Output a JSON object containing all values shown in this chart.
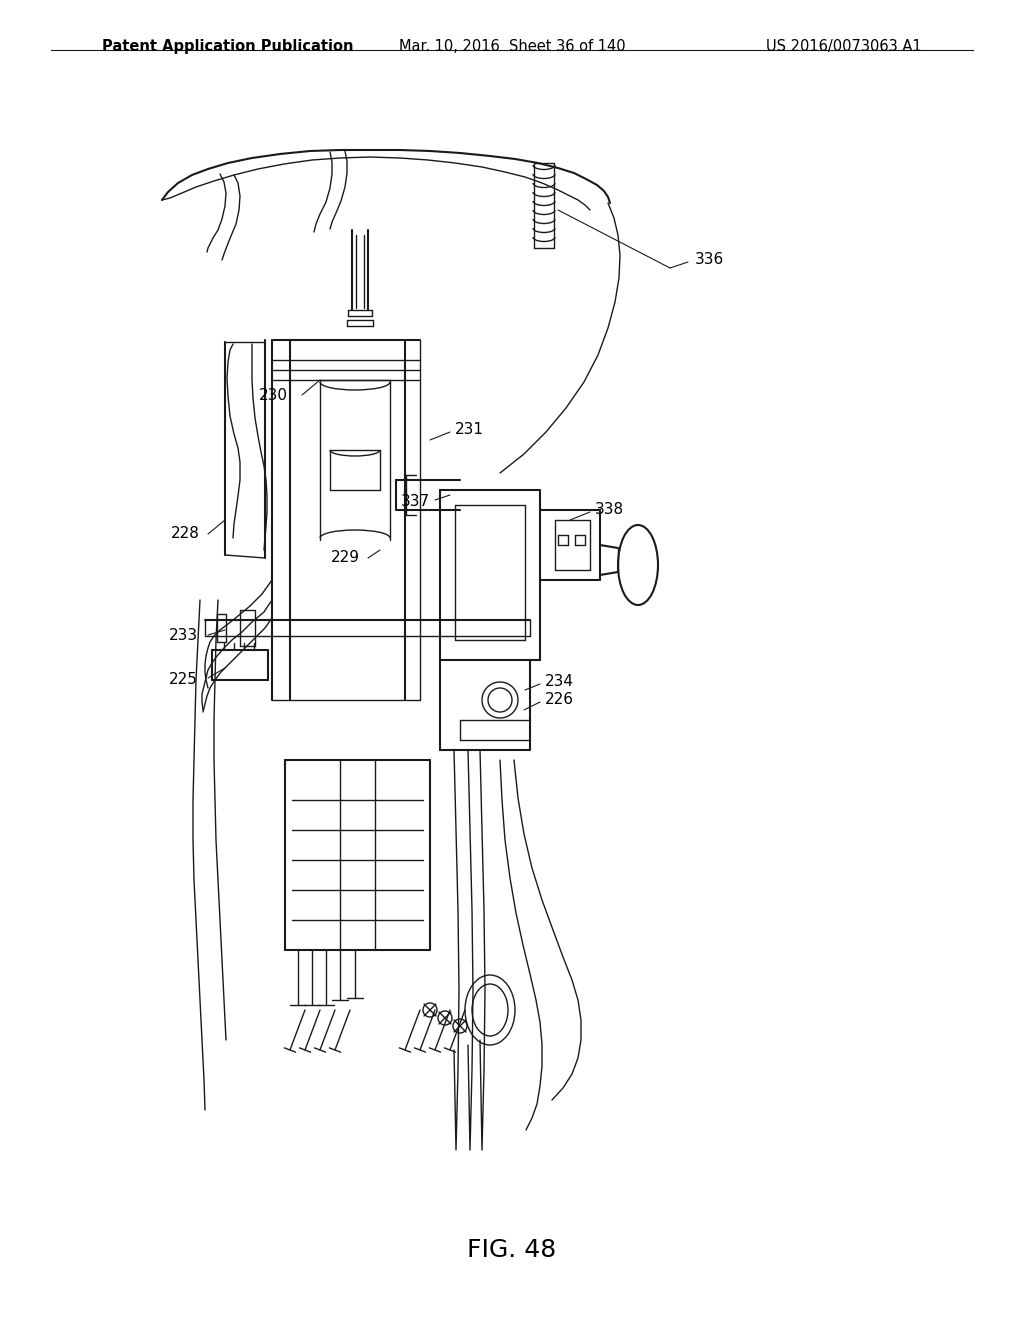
{
  "background_color": "#ffffff",
  "fig_width": 10.24,
  "fig_height": 13.2,
  "header_left": "Patent Application Publication",
  "header_center": "Mar. 10, 2016  Sheet 36 of 140",
  "header_right": "US 2016/0073063 A1",
  "figure_label": "FIG. 48",
  "text_color": "#000000",
  "line_color": "#1a1a1a",
  "header_font_size": 10.5,
  "label_font_size": 11,
  "figure_label_font_size": 18
}
